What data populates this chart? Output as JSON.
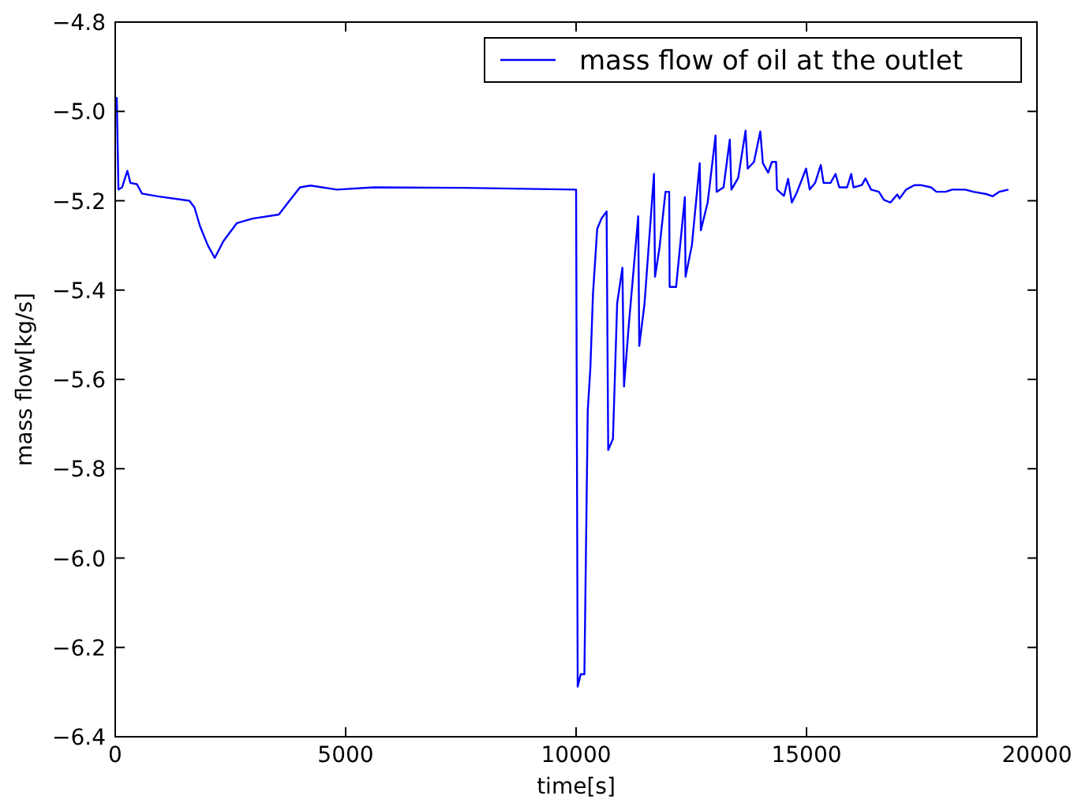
{
  "chart_data": {
    "type": "line",
    "xlabel": "time[s]",
    "ylabel": "mass flow[kg/s]",
    "xlim": [
      0,
      20000
    ],
    "ylim": [
      -6.4,
      -4.8
    ],
    "xticks": [
      0,
      5000,
      10000,
      15000,
      20000
    ],
    "yticks": [
      {
        "value": -6.4,
        "label": "−6.4"
      },
      {
        "value": -6.2,
        "label": "−6.2"
      },
      {
        "value": -6,
        "label": "−6.0"
      },
      {
        "value": -5.8,
        "label": "−5.8"
      },
      {
        "value": -5.6,
        "label": "−5.6"
      },
      {
        "value": -5.4,
        "label": "−5.4"
      },
      {
        "value": -5.2,
        "label": "−5.2"
      },
      {
        "value": -5,
        "label": "−5.0"
      },
      {
        "value": -4.8,
        "label": "−4.8"
      }
    ],
    "legend": "top right",
    "grid": false,
    "line_style": "solid",
    "series": [
      {
        "name": "mass flow of oil at the outlet",
        "color": "#0000ff",
        "x": [
          0,
          34,
          70,
          150,
          263,
          330,
          470,
          580,
          920,
          1610,
          1720,
          1840,
          2010,
          2160,
          2350,
          2640,
          2980,
          3550,
          3780,
          4010,
          4240,
          4810,
          5610,
          7550,
          10000,
          10035,
          10100,
          10180,
          10253,
          10310,
          10366,
          10458,
          10550,
          10662,
          10697,
          10800,
          10891,
          11005,
          11040,
          11142,
          11348,
          11371,
          11485,
          11690,
          11713,
          11810,
          11940,
          12020,
          12030,
          12170,
          12360,
          12375,
          12512,
          12683,
          12707,
          12855,
          13026,
          13050,
          13200,
          13335,
          13370,
          13517,
          13677,
          13723,
          13860,
          13997,
          14053,
          14168,
          14248,
          14340,
          14360,
          14510,
          14600,
          14682,
          14796,
          14990,
          15070,
          15187,
          15310,
          15370,
          15520,
          15630,
          15710,
          15880,
          15970,
          16020,
          16200,
          16280,
          16400,
          16570,
          16680,
          16820,
          16970,
          17020,
          17160,
          17340,
          17480,
          17700,
          17820,
          18020,
          18160,
          18330,
          18440,
          18620,
          18900,
          19040,
          19180,
          19380
        ],
        "values": [
          -4.97,
          -4.97,
          -5.175,
          -5.17,
          -5.133,
          -5.16,
          -5.163,
          -5.184,
          -5.19,
          -5.2,
          -5.215,
          -5.257,
          -5.3,
          -5.328,
          -5.29,
          -5.25,
          -5.24,
          -5.231,
          -5.2,
          -5.17,
          -5.166,
          -5.175,
          -5.17,
          -5.171,
          -5.175,
          -6.288,
          -6.26,
          -6.26,
          -5.67,
          -5.574,
          -5.41,
          -5.263,
          -5.24,
          -5.224,
          -5.758,
          -5.733,
          -5.43,
          -5.35,
          -5.616,
          -5.48,
          -5.235,
          -5.525,
          -5.43,
          -5.14,
          -5.37,
          -5.305,
          -5.18,
          -5.18,
          -5.393,
          -5.393,
          -5.192,
          -5.37,
          -5.3,
          -5.116,
          -5.266,
          -5.204,
          -5.054,
          -5.18,
          -5.17,
          -5.063,
          -5.175,
          -5.149,
          -5.043,
          -5.128,
          -5.113,
          -5.045,
          -5.116,
          -5.137,
          -5.113,
          -5.113,
          -5.175,
          -5.189,
          -5.151,
          -5.204,
          -5.18,
          -5.128,
          -5.175,
          -5.16,
          -5.12,
          -5.16,
          -5.16,
          -5.14,
          -5.17,
          -5.17,
          -5.14,
          -5.17,
          -5.165,
          -5.15,
          -5.175,
          -5.18,
          -5.198,
          -5.204,
          -5.186,
          -5.195,
          -5.175,
          -5.165,
          -5.165,
          -5.17,
          -5.18,
          -5.18,
          -5.175,
          -5.175,
          -5.175,
          -5.18,
          -5.185,
          -5.19,
          -5.18,
          -5.175
        ]
      }
    ]
  }
}
